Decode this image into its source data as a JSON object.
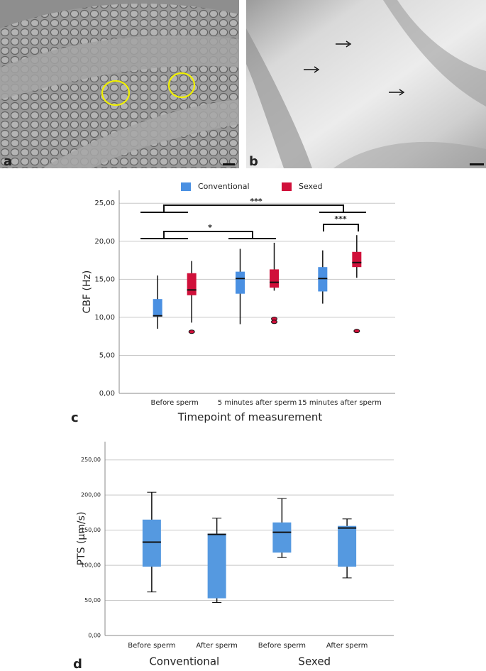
{
  "panel_labels": [
    "a",
    "b",
    "c",
    "d"
  ],
  "chart_data": [
    {
      "type": "box",
      "y_label": "CBF (Hz)",
      "x_label": "Timepoint of measurement",
      "categories": [
        "Before sperm",
        "5 minutes after sperm",
        "15 minutes after sperm"
      ],
      "legend": "top",
      "grid": true,
      "ylim": [
        0,
        26.7
      ],
      "yticks": [
        {
          "value": 0,
          "label": "0,00"
        },
        {
          "value": 5,
          "label": "5,00"
        },
        {
          "value": 10,
          "label": "10,00"
        },
        {
          "value": 15,
          "label": "15,00"
        },
        {
          "value": 20,
          "label": "20,00"
        },
        {
          "value": 25,
          "label": "25,00"
        }
      ],
      "series": [
        {
          "name": "Conventional",
          "color": "#4a90e2",
          "values": [
            {
              "min": 8.5,
              "q1": 10.1,
              "median": 10.2,
              "q3": 12.4,
              "max": 15.5,
              "outliers": []
            },
            {
              "min": 9.1,
              "q1": 13.1,
              "median": 15.1,
              "q3": 16.0,
              "max": 19.0,
              "outliers": []
            },
            {
              "min": 11.8,
              "q1": 13.4,
              "median": 15.1,
              "q3": 16.6,
              "max": 18.8,
              "outliers": []
            }
          ]
        },
        {
          "name": "Sexed",
          "color": "#d0103a",
          "values": [
            {
              "min": 9.3,
              "q1": 12.9,
              "median": 13.6,
              "q3": 15.8,
              "max": 17.4,
              "outliers": [
                8.1
              ]
            },
            {
              "min": 13.5,
              "q1": 13.9,
              "median": 14.6,
              "q3": 16.3,
              "max": 19.8,
              "outliers": [
                9.8,
                9.4
              ]
            },
            {
              "min": 15.2,
              "q1": 16.6,
              "median": 17.2,
              "q3": 18.6,
              "max": 20.8,
              "outliers": [
                8.2
              ]
            }
          ]
        }
      ],
      "annotations": [
        "***",
        "*",
        "***"
      ]
    },
    {
      "type": "box",
      "y_label": "PTS (µm/s)",
      "categories": [
        "Before sperm",
        "After sperm",
        "Before sperm",
        "After sperm"
      ],
      "groups": [
        "Conventional",
        "Sexed"
      ],
      "grid": true,
      "ylim": [
        0,
        276
      ],
      "yticks": [
        {
          "value": 0,
          "label": "0,00"
        },
        {
          "value": 50,
          "label": "50,00"
        },
        {
          "value": 100,
          "label": "100,00"
        },
        {
          "value": 150,
          "label": "150,00"
        },
        {
          "value": 200,
          "label": "200,00"
        },
        {
          "value": 250,
          "label": "250,00"
        }
      ],
      "series": [
        {
          "color": "#5599e0",
          "values": [
            {
              "min": 62,
              "q1": 98,
              "median": 133,
              "q3": 165,
              "max": 204,
              "outliers": []
            },
            {
              "min": 47,
              "q1": 53,
              "median": 144,
              "q3": 145,
              "max": 167,
              "outliers": []
            },
            {
              "min": 111,
              "q1": 118,
              "median": 147,
              "q3": 161,
              "max": 195,
              "outliers": []
            },
            {
              "min": 82,
              "q1": 98,
              "median": 153,
              "q3": 156,
              "max": 166,
              "outliers": []
            }
          ]
        }
      ]
    }
  ]
}
